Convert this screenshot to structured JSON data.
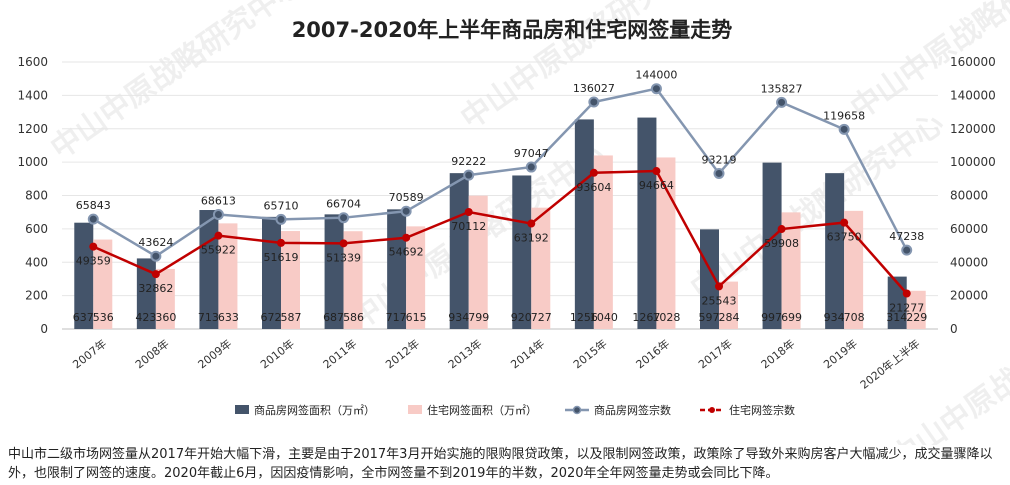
{
  "chart_data": {
    "type": "bar",
    "title": "2007-2020年上半年商品房和住宅网签量走势",
    "categories": [
      "2007年",
      "2008年",
      "2009年",
      "2010年",
      "2011年",
      "2012年",
      "2013年",
      "2014年",
      "2015年",
      "2016年",
      "2017年",
      "2018年",
      "2019年",
      "2020年上半年"
    ],
    "y_left": {
      "ylim": [
        0,
        1600
      ],
      "ticks": [
        "0",
        "200",
        "400",
        "600",
        "800",
        "1000",
        "1200",
        "1400",
        "1600"
      ]
    },
    "y_right": {
      "ylim": [
        0,
        160000
      ],
      "ticks": [
        "0",
        "20000",
        "40000",
        "60000",
        "80000",
        "100000",
        "120000",
        "140000",
        "160000"
      ]
    },
    "series": [
      {
        "name": "商品房网签面积（万㎡）",
        "type": "bar",
        "axis": "left",
        "color": "#44546a",
        "values": [
          637,
          423,
          713,
          672,
          687,
          717,
          934,
          920,
          1256,
          1267,
          597,
          997,
          934,
          314
        ]
      },
      {
        "name": "住宅网签面积（万㎡）",
        "type": "bar",
        "axis": "left",
        "color": "#f8cbc6",
        "values": [
          536,
          360,
          633,
          587,
          586,
          615,
          799,
          727,
          1040,
          1028,
          284,
          699,
          708,
          229
        ]
      },
      {
        "name": "商品房网签宗数",
        "type": "line",
        "axis": "right",
        "color": "#8496b0",
        "values": [
          65843,
          43624,
          68613,
          65710,
          66704,
          70589,
          92222,
          97047,
          136027,
          144000,
          93219,
          135827,
          119658,
          47238
        ]
      },
      {
        "name": "住宅网签宗数",
        "type": "line",
        "axis": "right",
        "color": "#c00000",
        "dashed_legend": true,
        "values": [
          49359,
          32862,
          55922,
          51619,
          51339,
          54692,
          70112,
          63192,
          93604,
          94664,
          25543,
          59908,
          63750,
          21277
        ]
      }
    ],
    "legend_position": "bottom"
  },
  "watermark": "中山中原战略研究中心",
  "note": "中山市二级市场网签量从2017年开始大幅下滑，主要是由于2017年3月开始实施的限购限贷政策，以及限制网签政策，政策除了导致外来购房客户大幅减少，成交量骤降以外，也限制了网签的速度。2020年截止6月，因因疫情影响，全市网签量不到2019年的半数，2020年全年网签量走势或会同比下降。"
}
